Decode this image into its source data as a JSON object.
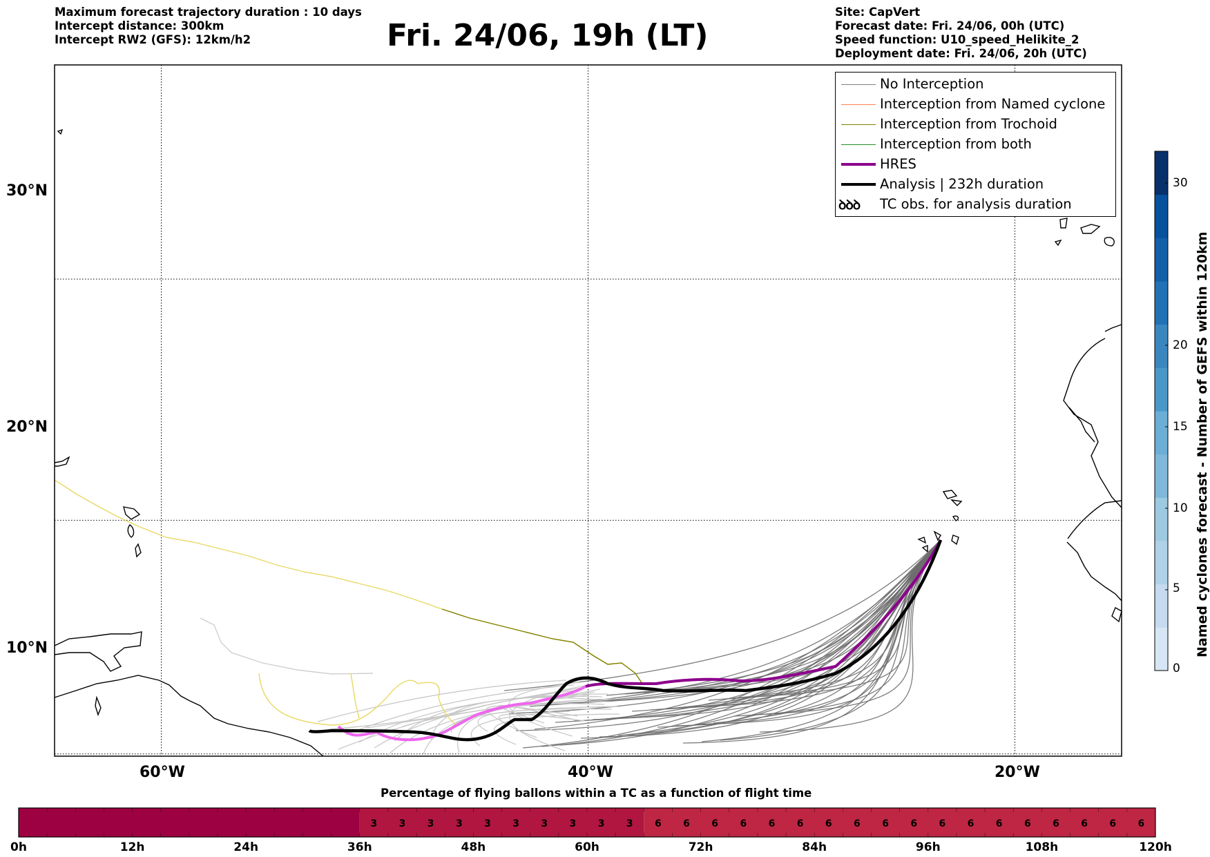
{
  "header_left": {
    "line1": "Maximum forecast trajectory duration : 10 days",
    "line2": "Intercept distance: 300km",
    "line3": "Intercept RW2 (GFS):  12km/h2"
  },
  "title": "Fri. 24/06, 19h (LT)",
  "header_right": {
    "line1": "Site: CapVert",
    "line2": "Forecast date: Fri. 24/06, 00h (UTC)",
    "line3": "Speed function: U10_speed_Helikite_2",
    "line4": "Deployment date: Fri. 24/06, 20h (UTC)"
  },
  "map": {
    "longitude_labels": [
      "60°W",
      "40°W",
      "20°W"
    ],
    "latitude_labels": [
      "30°N",
      "20°N",
      "10°N"
    ],
    "gridlines": "dotted",
    "lon_range_deg": [
      -65,
      -15
    ],
    "lat_range_deg": [
      5.4,
      34.7
    ],
    "launch_site": {
      "lon": -23.5,
      "lat": 14.8
    }
  },
  "legend": {
    "items": [
      {
        "label": "No Interception",
        "color": "#808080",
        "style": "thin"
      },
      {
        "label": "Interception from Named cyclone",
        "color": "#ff7f50",
        "style": "thin"
      },
      {
        "label": "Interception from Trochoid",
        "color": "#808000",
        "style": "thin"
      },
      {
        "label": "Interception from both",
        "color": "#228b22",
        "style": "thin"
      },
      {
        "label": "HRES",
        "color": "#8b008b",
        "style": "thick"
      },
      {
        "label": "Analysis | 232h duration",
        "color": "#000000",
        "style": "thick"
      },
      {
        "label": "TC obs. for analysis duration",
        "icon": "ꝺꝺꝺ",
        "style": "icon"
      }
    ]
  },
  "colorbar": {
    "title": "Named cyclones forecast - Number of GEFS within 120km",
    "ticks": [
      "0",
      "5",
      "10",
      "15",
      "20",
      "30"
    ],
    "colors": [
      "#d6e6f4",
      "#c6dbef",
      "#b0d2e8",
      "#9ecae1",
      "#7fb8da",
      "#6baed6",
      "#4a98c9",
      "#3a87c0",
      "#2171b5",
      "#1460a8",
      "#08519c",
      "#08306b"
    ]
  },
  "flight_bar": {
    "title": "Percentage of flying ballons within a TC as a function of flight time",
    "hour_labels": [
      "0h",
      "12h",
      "24h",
      "36h",
      "48h",
      "60h",
      "72h",
      "84h",
      "96h",
      "108h",
      "120h"
    ],
    "segments": [
      {
        "from_h": 0,
        "to_h": 36,
        "value": "",
        "color": "#9e0142"
      },
      {
        "from_h": 36,
        "to_h": 66,
        "value": "3",
        "color": "#b0163f"
      },
      {
        "from_h": 66,
        "to_h": 120,
        "value": "6",
        "color": "#be2644"
      }
    ],
    "cell_hours": 3
  }
}
